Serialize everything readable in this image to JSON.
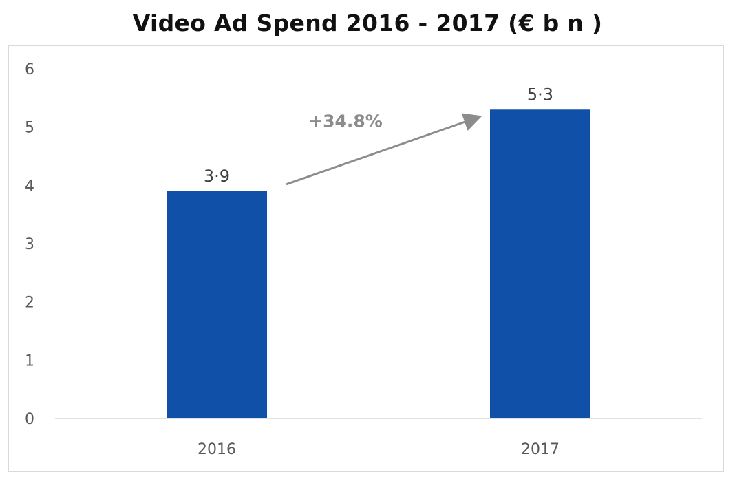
{
  "chart_data": {
    "type": "bar",
    "title": "Video Ad Spend 2016 - 2017 (€ b n )",
    "categories": [
      "2016",
      "2017"
    ],
    "values": [
      3.9,
      5.3
    ],
    "value_labels": [
      "3·9",
      "5·3"
    ],
    "ylim": [
      0,
      6
    ],
    "yticks": [
      "0",
      "1",
      "2",
      "3",
      "4",
      "5",
      "6"
    ],
    "xlabel": "",
    "ylabel": "",
    "grid": false,
    "legend": "none",
    "annotation": {
      "text": "+34.8%",
      "type": "arrow",
      "from_category": "2016",
      "to_category": "2017"
    },
    "colors": {
      "bar": "#1150a8",
      "arrow": "#8c8c8c",
      "axis": "#d9d9d9"
    }
  }
}
